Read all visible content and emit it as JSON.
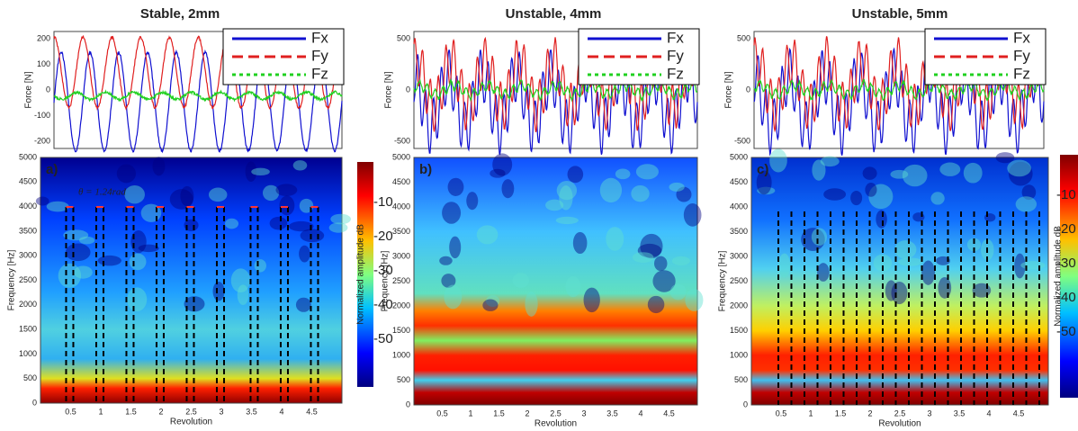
{
  "panels": [
    {
      "title": "Stable, 2mm",
      "force_ylabel": "Force [N]",
      "force_yticks": [
        "200",
        "100",
        "0",
        "-100",
        "-200"
      ],
      "legend": [
        "Fx",
        "Fy",
        "Fz"
      ],
      "label": "a)",
      "annotation": "θ = 1.24rad",
      "ylabel": "Frequency [Hz]",
      "xlabel": "Revolution",
      "yticks": [
        "0",
        "500",
        "1000",
        "1500",
        "2000",
        "2500",
        "3000",
        "3500",
        "4000",
        "4500",
        "5000"
      ],
      "xticks": [
        "0.5",
        "1",
        "1.5",
        "2",
        "2.5",
        "3",
        "3.5",
        "4",
        "4.5"
      ],
      "colorbar_label": "Normalized amplitude dB",
      "colorbar_ticks": [
        "-10",
        "-20",
        "-30",
        "-40",
        "-50"
      ]
    },
    {
      "title": "Unstable, 4mm",
      "force_ylabel": "Force [N]",
      "force_yticks": [
        "500",
        "0",
        "-500"
      ],
      "legend": [
        "Fx",
        "Fy",
        "Fz"
      ],
      "label": "b)",
      "ylabel": "Frequency [Hz]",
      "xlabel": "Revolution",
      "yticks": [
        "0",
        "500",
        "1000",
        "1500",
        "2000",
        "2500",
        "3000",
        "3500",
        "4000",
        "4500",
        "5000"
      ],
      "xticks": [
        "0.5",
        "1",
        "1.5",
        "2",
        "2.5",
        "3",
        "3.5",
        "4",
        "4.5"
      ]
    },
    {
      "title": "Unstable, 5mm",
      "force_ylabel": "Force [N]",
      "force_yticks": [
        "500",
        "0",
        "-500"
      ],
      "legend": [
        "Fx",
        "Fy",
        "Fz"
      ],
      "label": "c)",
      "ylabel": "Frequency [Hz]",
      "xlabel": "Revolution",
      "yticks": [
        "0",
        "500",
        "1000",
        "1500",
        "2000",
        "2500",
        "3000",
        "3500",
        "4000",
        "4500",
        "5000"
      ],
      "xticks": [
        "0.5",
        "1",
        "1.5",
        "2",
        "2.5",
        "3",
        "3.5",
        "4",
        "4.5"
      ],
      "colorbar_label": "Normalized amplitude dB",
      "colorbar_ticks": [
        "-10",
        "-20",
        "-30",
        "-40",
        "-50"
      ]
    }
  ]
}
